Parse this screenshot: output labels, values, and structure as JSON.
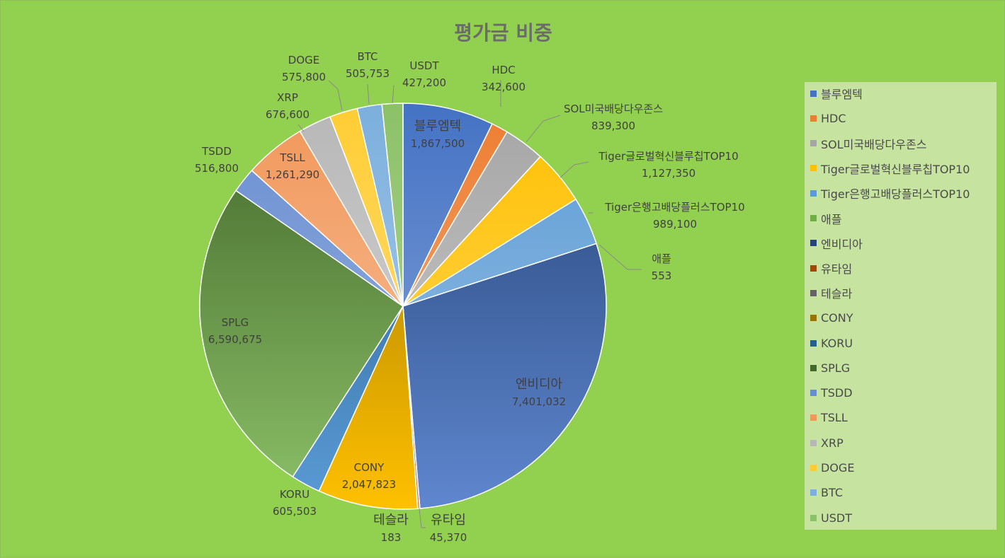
{
  "chart_data": {
    "type": "pie",
    "title": "평가금 비중",
    "slices": [
      {
        "name": "블루엠텍",
        "value": 1867500,
        "label": "1,867,500",
        "color": "#4472c4",
        "color2": "#8eaadb"
      },
      {
        "name": "HDC",
        "value": 342600,
        "label": "342,600",
        "color": "#ed7d31",
        "color2": "#f4b183"
      },
      {
        "name": "SOL미국배당다우존스",
        "value": 839300,
        "label": "839,300",
        "color": "#a5a5a5",
        "color2": "#d0d0d0"
      },
      {
        "name": "Tiger글로벌혁신블루칩TOP10",
        "value": 1127350,
        "label": "1,127,350",
        "color": "#ffc000",
        "color2": "#ffd966"
      },
      {
        "name": "Tiger은행고배당플러스TOP10",
        "value": 989100,
        "label": "989,100",
        "color": "#5b9bd5",
        "color2": "#9dc3e6"
      },
      {
        "name": "애플",
        "value": 553,
        "label": "553",
        "color": "#70ad47",
        "color2": "#a9d18e"
      },
      {
        "name": "엔비디아",
        "value": 7401032,
        "label": "7,401,032",
        "color": "#264478",
        "color2": "#5f87cf"
      },
      {
        "name": "유타임",
        "value": 45370,
        "label": "45,370",
        "color": "#9e480e",
        "color2": "#d08a57"
      },
      {
        "name": "테슬라",
        "value": 183,
        "label": "183",
        "color": "#636363",
        "color2": "#a0a0a0"
      },
      {
        "name": "CONY",
        "value": 2047823,
        "label": "2,047,823",
        "color": "#997300",
        "color2": "#ffc000"
      },
      {
        "name": "KORU",
        "value": 605503,
        "label": "605,503",
        "color": "#255e91",
        "color2": "#5b9bd5"
      },
      {
        "name": "SPLG",
        "value": 6590675,
        "label": "6,590,675",
        "color": "#43682b",
        "color2": "#8cc168"
      },
      {
        "name": "TSDD",
        "value": 516800,
        "label": "516,800",
        "color": "#698ed0",
        "color2": "#9db5e3"
      },
      {
        "name": "TSLL",
        "value": 1261290,
        "label": "1,261,290",
        "color": "#f1975a",
        "color2": "#f8c6a3"
      },
      {
        "name": "XRP",
        "value": 676600,
        "label": "676,600",
        "color": "#b7b7b7",
        "color2": "#dadada"
      },
      {
        "name": "DOGE",
        "value": 575800,
        "label": "575,800",
        "color": "#ffcd33",
        "color2": "#ffe08a"
      },
      {
        "name": "BTC",
        "value": 505753,
        "label": "505,753",
        "color": "#7cafdd",
        "color2": "#b4d2ee"
      },
      {
        "name": "USDT",
        "value": 427200,
        "label": "427,200",
        "color": "#8cc168",
        "color2": "#b8daa0"
      }
    ],
    "legend_position": "right"
  }
}
